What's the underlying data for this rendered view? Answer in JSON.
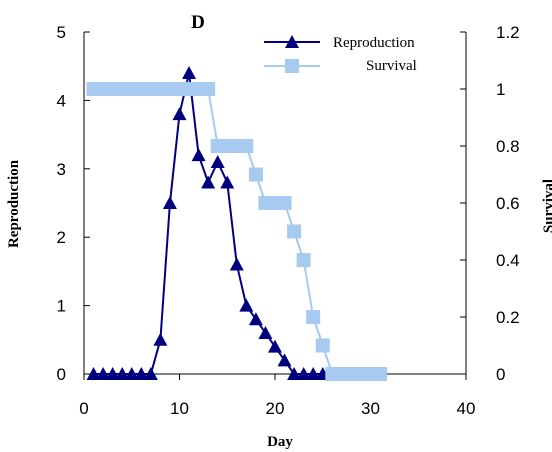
{
  "chart_data": {
    "type": "line",
    "title": "D",
    "xlabel": "Day",
    "ylabel": "Reproduction",
    "y2label": "Survival",
    "xlim": [
      0,
      40
    ],
    "ylim": [
      0,
      5
    ],
    "y2lim": [
      0,
      1.2
    ],
    "x_ticks": [
      "0",
      "10",
      "20",
      "30",
      "40"
    ],
    "y_ticks": [
      "0",
      "1",
      "2",
      "3",
      "4",
      "5"
    ],
    "y2_ticks": [
      "0",
      "0.2",
      "0.4",
      "0.6",
      "0.8",
      "1",
      "1.2"
    ],
    "grid": false,
    "legend_position": "top-right",
    "series": [
      {
        "name": "Reproduction",
        "axis": "left",
        "color": "#00007f",
        "marker": "triangle",
        "x": [
          1,
          2,
          3,
          4,
          5,
          6,
          7,
          8,
          9,
          10,
          11,
          12,
          13,
          14,
          15,
          16,
          17,
          18,
          19,
          20,
          21,
          22,
          23,
          24,
          25
        ],
        "values": [
          0,
          0,
          0,
          0,
          0,
          0,
          0,
          0.5,
          2.5,
          3.8,
          4.4,
          3.2,
          2.8,
          3.1,
          2.8,
          1.6,
          1.0,
          0.8,
          0.6,
          0.4,
          0.2,
          0,
          0,
          0,
          0
        ]
      },
      {
        "name": "Survival",
        "axis": "right",
        "color": "#a6caf0",
        "marker": "square",
        "x": [
          1,
          2,
          3,
          4,
          5,
          6,
          7,
          8,
          9,
          10,
          11,
          12,
          13,
          14,
          15,
          16,
          17,
          18,
          19,
          20,
          21,
          22,
          23,
          24,
          25,
          26,
          27,
          28,
          29,
          30,
          31
        ],
        "values": [
          1,
          1,
          1,
          1,
          1,
          1,
          1,
          1,
          1,
          1,
          1,
          1,
          1,
          0.8,
          0.8,
          0.8,
          0.8,
          0.7,
          0.6,
          0.6,
          0.6,
          0.5,
          0.4,
          0.2,
          0.1,
          0,
          0,
          0,
          0,
          0,
          0
        ]
      }
    ]
  }
}
